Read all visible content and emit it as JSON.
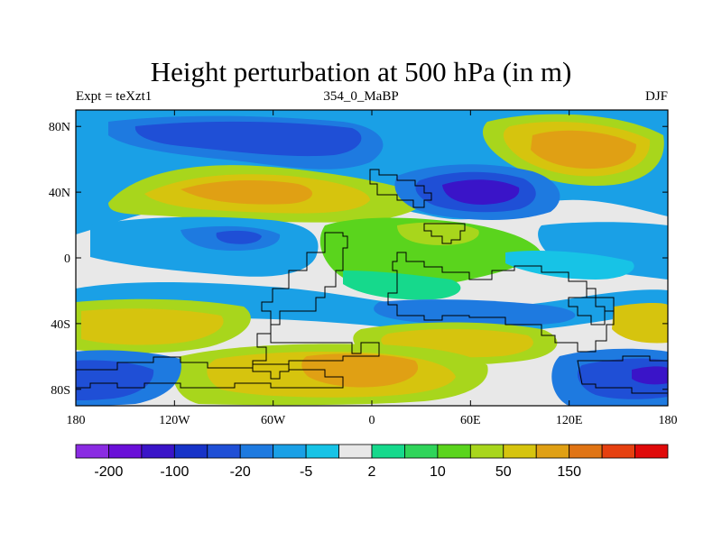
{
  "title": "Height perturbation at 500 hPa (in m)",
  "subtitle_left": "Expt = teXzt1",
  "subtitle_center": "354_0_MaBP",
  "subtitle_right": "DJF",
  "colors": {
    "neg200": "#8a2be2",
    "neg150": "#6a0fd8",
    "neg100": "#3a14c8",
    "neg50": "#1733c8",
    "neg20": "#1f4fd6",
    "neg10": "#1e7ae0",
    "neg5": "#1aa0e6",
    "neg2": "#17c3e6",
    "zero": "#e8e8e8",
    "pos2": "#16d98c",
    "pos5": "#2fd45a",
    "pos10": "#5ad41d",
    "pos20": "#a8d61c",
    "pos50": "#d6c40e",
    "pos100": "#e0a014",
    "pos150": "#e07414",
    "pos200": "#e64010",
    "pos250": "#e00a0a"
  },
  "chart_data": {
    "type": "heatmap",
    "title": "Height perturbation at 500 hPa (in m)",
    "x_ticks": [
      "180",
      "120W",
      "60W",
      "0",
      "60E",
      "120E",
      "180"
    ],
    "x_tick_values": [
      -180,
      -120,
      -60,
      0,
      60,
      120,
      180
    ],
    "y_ticks": [
      "80N",
      "40N",
      "0",
      "40S",
      "80S"
    ],
    "y_tick_values": [
      80,
      40,
      0,
      -40,
      -80
    ],
    "xlim": [
      -180,
      180
    ],
    "ylim": [
      -90,
      90
    ],
    "colorbar_labels": [
      "-200",
      "-100",
      "-20",
      "-5",
      "2",
      "10",
      "50",
      "150"
    ],
    "colorbar_colors": [
      "#8a2be2",
      "#6a0fd8",
      "#3a14c8",
      "#1733c8",
      "#1f4fd6",
      "#1e7ae0",
      "#1aa0e6",
      "#17c3e6",
      "#e8e8e8",
      "#16d98c",
      "#2fd45a",
      "#5ad41d",
      "#a8d61c",
      "#d6c40e",
      "#e0a014",
      "#e07414",
      "#e64010",
      "#e00a0a"
    ]
  }
}
